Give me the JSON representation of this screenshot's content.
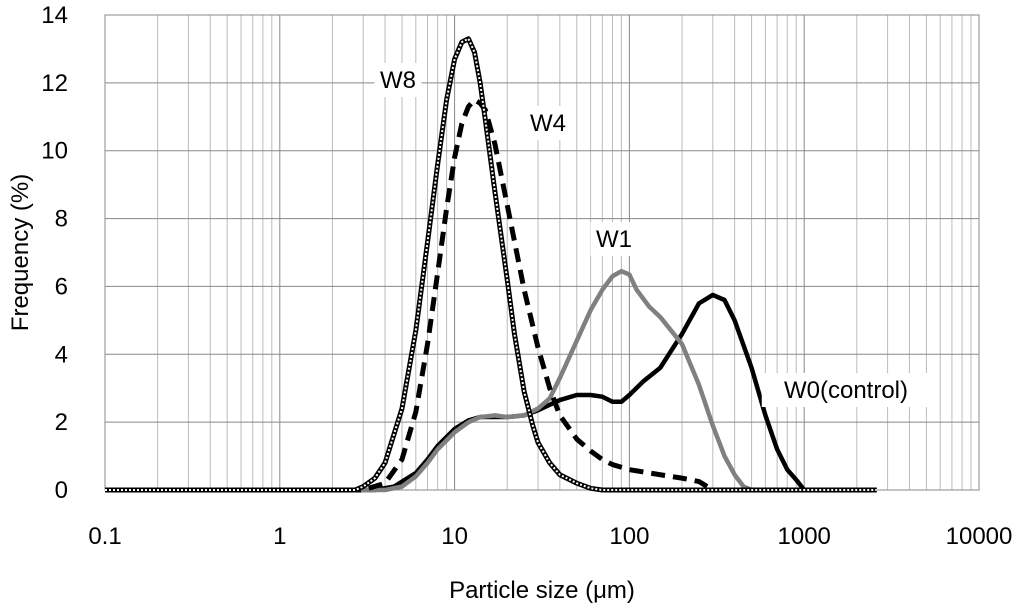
{
  "chart_data": {
    "type": "line",
    "xlabel": "Particle size (μm)",
    "ylabel": "Frequency (%)",
    "xscale": "log",
    "xlim": [
      0.1,
      10000
    ],
    "ylim": [
      0,
      14
    ],
    "x_ticks": [
      "0.1",
      "1",
      "10",
      "100",
      "1000",
      "10000"
    ],
    "y_ticks": [
      "0",
      "2",
      "4",
      "6",
      "8",
      "10",
      "12",
      "14"
    ],
    "y_tick_values": [
      0,
      2,
      4,
      6,
      8,
      10,
      12,
      14
    ],
    "grid": "on",
    "legend": "none",
    "series": [
      {
        "name": "W0(control)",
        "color": "#000000",
        "style": "solid",
        "x": [
          0.1,
          3.5,
          4.5,
          6,
          7,
          8,
          10,
          12,
          14,
          17,
          20,
          25,
          30,
          40,
          50,
          60,
          70,
          80,
          90,
          100,
          120,
          150,
          200,
          250,
          300,
          350,
          400,
          500,
          600,
          700,
          800,
          900,
          1000,
          2600
        ],
        "y": [
          0,
          0,
          0.1,
          0.5,
          0.9,
          1.3,
          1.8,
          2.05,
          2.15,
          2.15,
          2.15,
          2.2,
          2.35,
          2.65,
          2.8,
          2.8,
          2.75,
          2.6,
          2.6,
          2.8,
          3.2,
          3.6,
          4.6,
          5.5,
          5.75,
          5.6,
          5.0,
          3.6,
          2.2,
          1.2,
          0.6,
          0.3,
          0,
          0
        ]
      },
      {
        "name": "W1",
        "color": "#808080",
        "style": "solid",
        "x": [
          0.1,
          4,
          5,
          6,
          7,
          8,
          10,
          12,
          14,
          17,
          20,
          25,
          30,
          35,
          40,
          50,
          60,
          70,
          80,
          90,
          100,
          110,
          130,
          150,
          200,
          250,
          300,
          350,
          400,
          450,
          500
        ],
        "y": [
          0,
          0,
          0.1,
          0.4,
          0.8,
          1.2,
          1.7,
          2.0,
          2.15,
          2.2,
          2.15,
          2.2,
          2.4,
          2.7,
          3.3,
          4.4,
          5.3,
          5.9,
          6.3,
          6.45,
          6.35,
          5.9,
          5.4,
          5.1,
          4.3,
          3.1,
          1.9,
          1.0,
          0.45,
          0.1,
          0
        ]
      },
      {
        "name": "W4",
        "color": "#000000",
        "style": "dashed",
        "x": [
          0.1,
          3,
          4,
          5,
          6,
          7,
          8,
          9,
          10,
          11,
          12,
          13,
          14,
          15,
          17,
          20,
          25,
          30,
          35,
          40,
          50,
          60,
          70,
          80,
          100,
          150,
          200,
          250,
          300
        ],
        "y": [
          0,
          0,
          0.2,
          0.9,
          2.3,
          4.3,
          6.4,
          8.3,
          9.8,
          10.8,
          11.3,
          11.5,
          11.4,
          11.2,
          10.2,
          8.4,
          5.9,
          4.2,
          3.0,
          2.2,
          1.5,
          1.15,
          0.9,
          0.75,
          0.6,
          0.45,
          0.35,
          0.25,
          0
        ]
      },
      {
        "name": "W8",
        "color": "#000000",
        "style": "double",
        "x": [
          0.1,
          2.7,
          3,
          3.5,
          4,
          5,
          6,
          7,
          8,
          9,
          10,
          11,
          12,
          13,
          14,
          15,
          17,
          20,
          22,
          25,
          28,
          30,
          35,
          40,
          50,
          60,
          70,
          80,
          90,
          100,
          200,
          500,
          1000,
          2600
        ],
        "y": [
          0,
          0,
          0.1,
          0.35,
          0.8,
          2.4,
          4.7,
          7.3,
          9.6,
          11.5,
          12.7,
          13.2,
          13.3,
          12.9,
          12.0,
          10.9,
          8.8,
          6.2,
          4.6,
          2.9,
          1.9,
          1.4,
          0.8,
          0.45,
          0.2,
          0.05,
          0,
          0,
          0,
          0,
          0,
          0,
          0,
          0
        ]
      }
    ],
    "annotations": [
      {
        "text": "W8",
        "series": "W8"
      },
      {
        "text": "W4",
        "series": "W4"
      },
      {
        "text": "W1",
        "series": "W1"
      },
      {
        "text": "W0(control)",
        "series": "W0(control)"
      }
    ]
  }
}
